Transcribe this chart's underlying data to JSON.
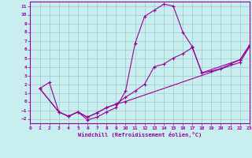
{
  "xlabel": "Windchill (Refroidissement éolien,°C)",
  "bg_color": "#c8eef0",
  "grid_color": "#a0c8c8",
  "line_color": "#990099",
  "xlim": [
    0,
    23
  ],
  "ylim": [
    -2.5,
    11.5
  ],
  "xticks": [
    0,
    1,
    2,
    3,
    4,
    5,
    6,
    7,
    8,
    9,
    10,
    11,
    12,
    13,
    14,
    15,
    16,
    17,
    18,
    19,
    20,
    21,
    22,
    23
  ],
  "yticks": [
    -2,
    -1,
    0,
    1,
    2,
    3,
    4,
    5,
    6,
    7,
    8,
    9,
    10,
    11
  ],
  "s1x": [
    1,
    2,
    3,
    4,
    5,
    6,
    7,
    8,
    9,
    10,
    11,
    12,
    13,
    14,
    15,
    16,
    17,
    18,
    22,
    23
  ],
  "s1y": [
    1.5,
    2.2,
    -1.2,
    -1.7,
    -1.2,
    -2.1,
    -1.8,
    -1.2,
    -0.7,
    1.2,
    6.7,
    9.8,
    10.5,
    11.2,
    11.0,
    8.0,
    6.3,
    3.3,
    4.8,
    6.5
  ],
  "s2x": [
    1,
    3,
    4,
    5,
    6,
    7,
    8,
    9,
    10,
    11,
    12,
    13,
    14,
    15,
    16,
    17,
    18,
    19,
    20,
    21,
    22,
    23
  ],
  "s2y": [
    1.5,
    -1.2,
    -1.7,
    -1.2,
    -1.8,
    -1.3,
    -0.7,
    -0.3,
    0.5,
    1.2,
    2.0,
    4.0,
    4.3,
    5.0,
    5.5,
    6.2,
    3.3,
    3.5,
    3.8,
    4.3,
    4.8,
    6.3
  ],
  "s3x": [
    1,
    3,
    4,
    5,
    6,
    7,
    8,
    9,
    10,
    22,
    23
  ],
  "s3y": [
    1.5,
    -1.2,
    -1.7,
    -1.2,
    -1.8,
    -1.3,
    -0.7,
    -0.3,
    0.0,
    4.5,
    6.3
  ]
}
